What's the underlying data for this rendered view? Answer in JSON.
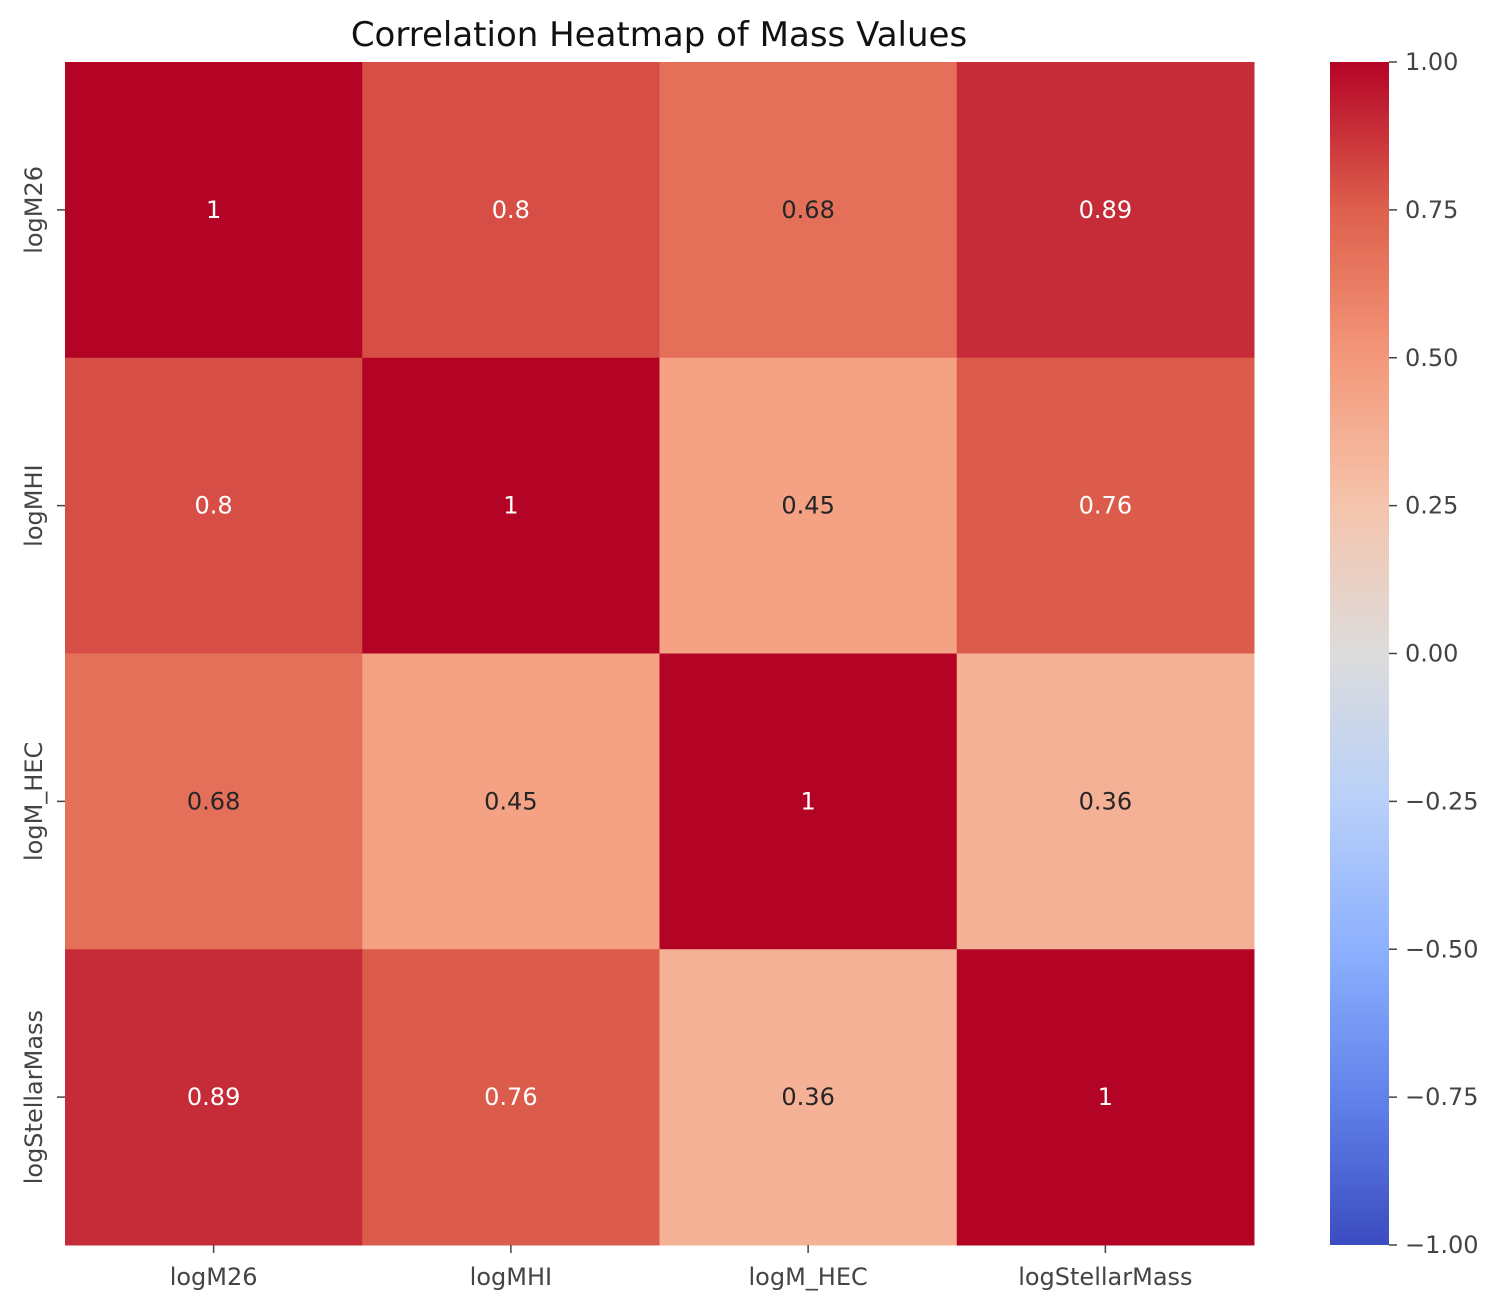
{
  "chart_data": {
    "type": "heatmap",
    "title": "Correlation Heatmap of Mass Values",
    "xlabel": "",
    "ylabel": "",
    "row_labels": [
      "logM26",
      "logMHI",
      "logM_HEC",
      "logStellarMass"
    ],
    "col_labels": [
      "logM26",
      "logMHI",
      "logM_HEC",
      "logStellarMass"
    ],
    "values": [
      [
        1.0,
        0.8,
        0.68,
        0.89
      ],
      [
        0.8,
        1.0,
        0.45,
        0.76
      ],
      [
        0.68,
        0.45,
        1.0,
        0.36
      ],
      [
        0.89,
        0.76,
        0.36,
        1.0
      ]
    ],
    "annotations": [
      [
        "1",
        "0.8",
        "0.68",
        "0.89"
      ],
      [
        "0.8",
        "1",
        "0.45",
        "0.76"
      ],
      [
        "0.68",
        "0.45",
        "1",
        "0.36"
      ],
      [
        "0.89",
        "0.76",
        "0.36",
        "1"
      ]
    ],
    "colormap": "coolwarm",
    "vmin": -1.0,
    "vmax": 1.0,
    "colorbar_ticks": [
      1.0,
      0.75,
      0.5,
      0.25,
      0.0,
      -0.25,
      -0.5,
      -0.75,
      -1.0
    ],
    "colorbar_tick_labels": [
      "1.00",
      "0.75",
      "0.50",
      "0.25",
      "0.00",
      "−0.25",
      "−0.50",
      "−0.75",
      "−1.00"
    ],
    "colorbar_placement": "right",
    "grid": false
  }
}
